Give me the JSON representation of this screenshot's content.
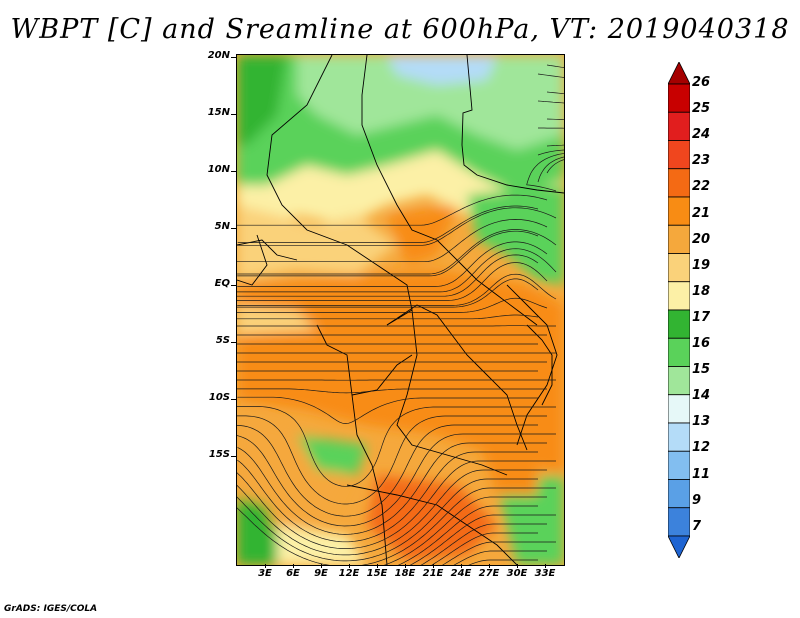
{
  "title": "WBPT [C] and Sreamline at 600hPa, VT: 2019040318",
  "footer": "GrADS: IGES/COLA",
  "map": {
    "lat_labels": [
      "20N",
      "15N",
      "10N",
      "5N",
      "EQ",
      "5S",
      "10S",
      "15S"
    ],
    "lon_labels": [
      "3E",
      "6E",
      "9E",
      "12E",
      "15E",
      "18E",
      "21E",
      "24E",
      "27E",
      "30E",
      "33E"
    ]
  },
  "colorbar": {
    "labels": [
      "26",
      "25",
      "24",
      "23",
      "22",
      "21",
      "20",
      "19",
      "18",
      "17",
      "16",
      "15",
      "14",
      "13",
      "12",
      "11",
      "9",
      "7"
    ],
    "colors": [
      "#a50000",
      "#c80000",
      "#e11e1e",
      "#f0461e",
      "#f46a14",
      "#f88c14",
      "#f5a83c",
      "#fad27a",
      "#fcf0a6",
      "#32b432",
      "#5ad25a",
      "#a0e69a",
      "#e6f8f8",
      "#b4dcf8",
      "#82bef0",
      "#5aa0e6",
      "#3c82dc",
      "#1e64d2"
    ]
  }
}
